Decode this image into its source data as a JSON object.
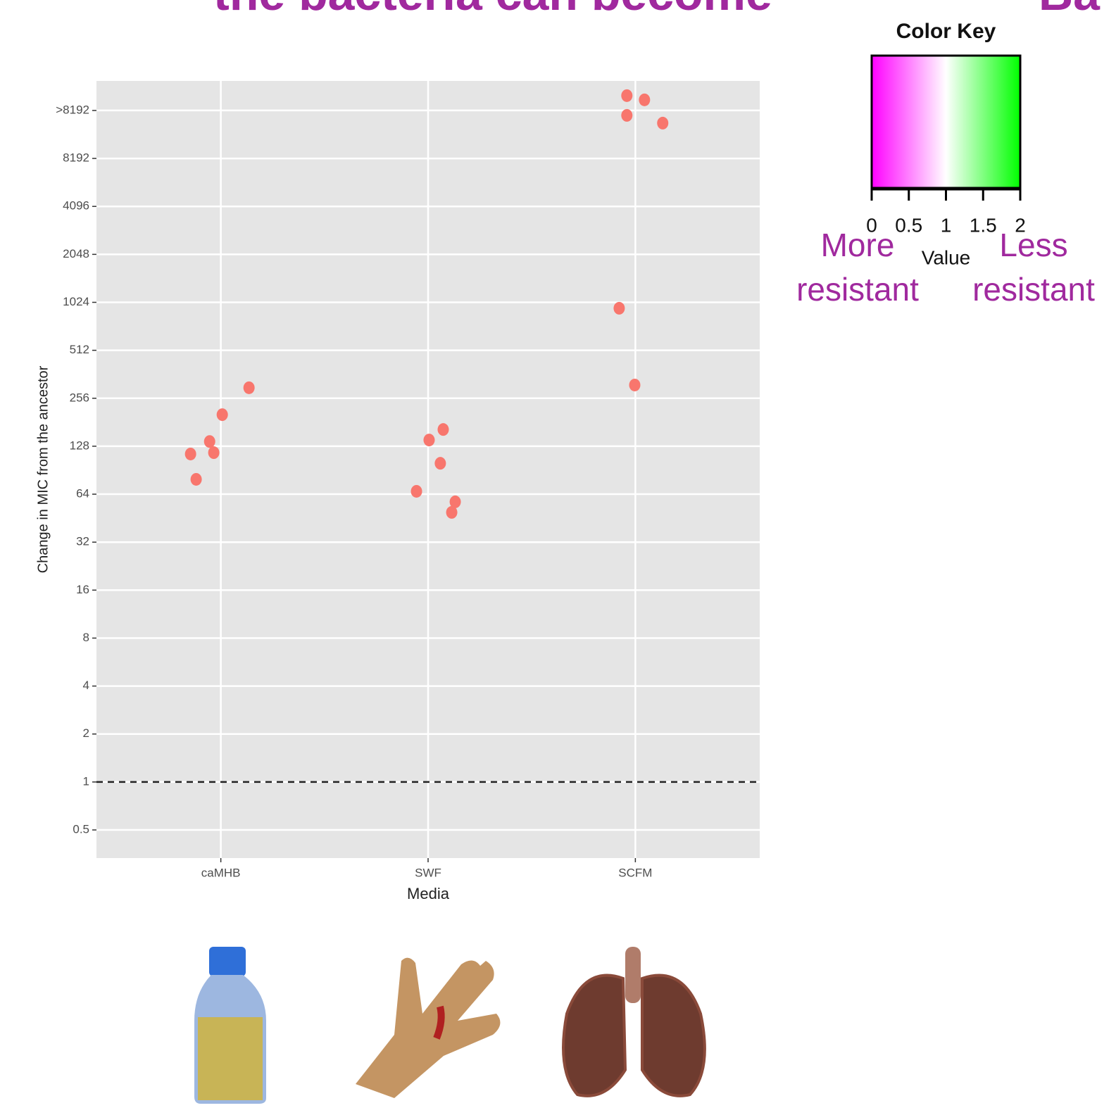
{
  "header": {
    "title": "the bacteria can become",
    "title_right": "Ba"
  },
  "chart_data": [
    {
      "type": "scatter",
      "x_label": "Media",
      "y_label": "Change in MIC from the ancestor",
      "log_y": true,
      "grid": true,
      "color": "#f8766d",
      "hline": 1,
      "xlim": [
        0.4,
        3.6
      ],
      "xticks": [
        {
          "value": 1,
          "label": "caMHB"
        },
        {
          "value": 2,
          "label": "SWF"
        },
        {
          "value": 3,
          "label": "SCFM"
        }
      ],
      "ylim": [
        0.333,
        25100
      ],
      "yticks": [
        0.5,
        1,
        2,
        4,
        8,
        16,
        32,
        64,
        128,
        256,
        512,
        1024,
        2048,
        4096,
        8192,
        {
          "value": 16384,
          "label": ">8192"
        }
      ],
      "x": [
        0.854,
        0.881,
        0.946,
        0.966,
        1.007,
        1.136,
        1.944,
        2.005,
        2.059,
        2.073,
        2.131,
        2.114,
        2.959,
        3.044,
        2.959,
        3.132,
        2.922,
        2.997
      ],
      "y": [
        114.4,
        79.3,
        137,
        116.7,
        202,
        298,
        66.7,
        140,
        100,
        163,
        57.3,
        49.2,
        20300,
        19100,
        15260,
        13650,
        940,
        310
      ]
    },
    {
      "type": "colorbar",
      "title": "Color Key",
      "x_label": "Value",
      "xlim": [
        0,
        2
      ],
      "xticks": [
        0,
        0.5,
        1,
        1.5,
        2
      ],
      "colors": [
        "#ff00ff",
        "#ffffff",
        "#00ff00"
      ],
      "annotations": [
        [
          "More",
          "resistant"
        ],
        [
          "Less",
          "resistant"
        ]
      ]
    }
  ]
}
